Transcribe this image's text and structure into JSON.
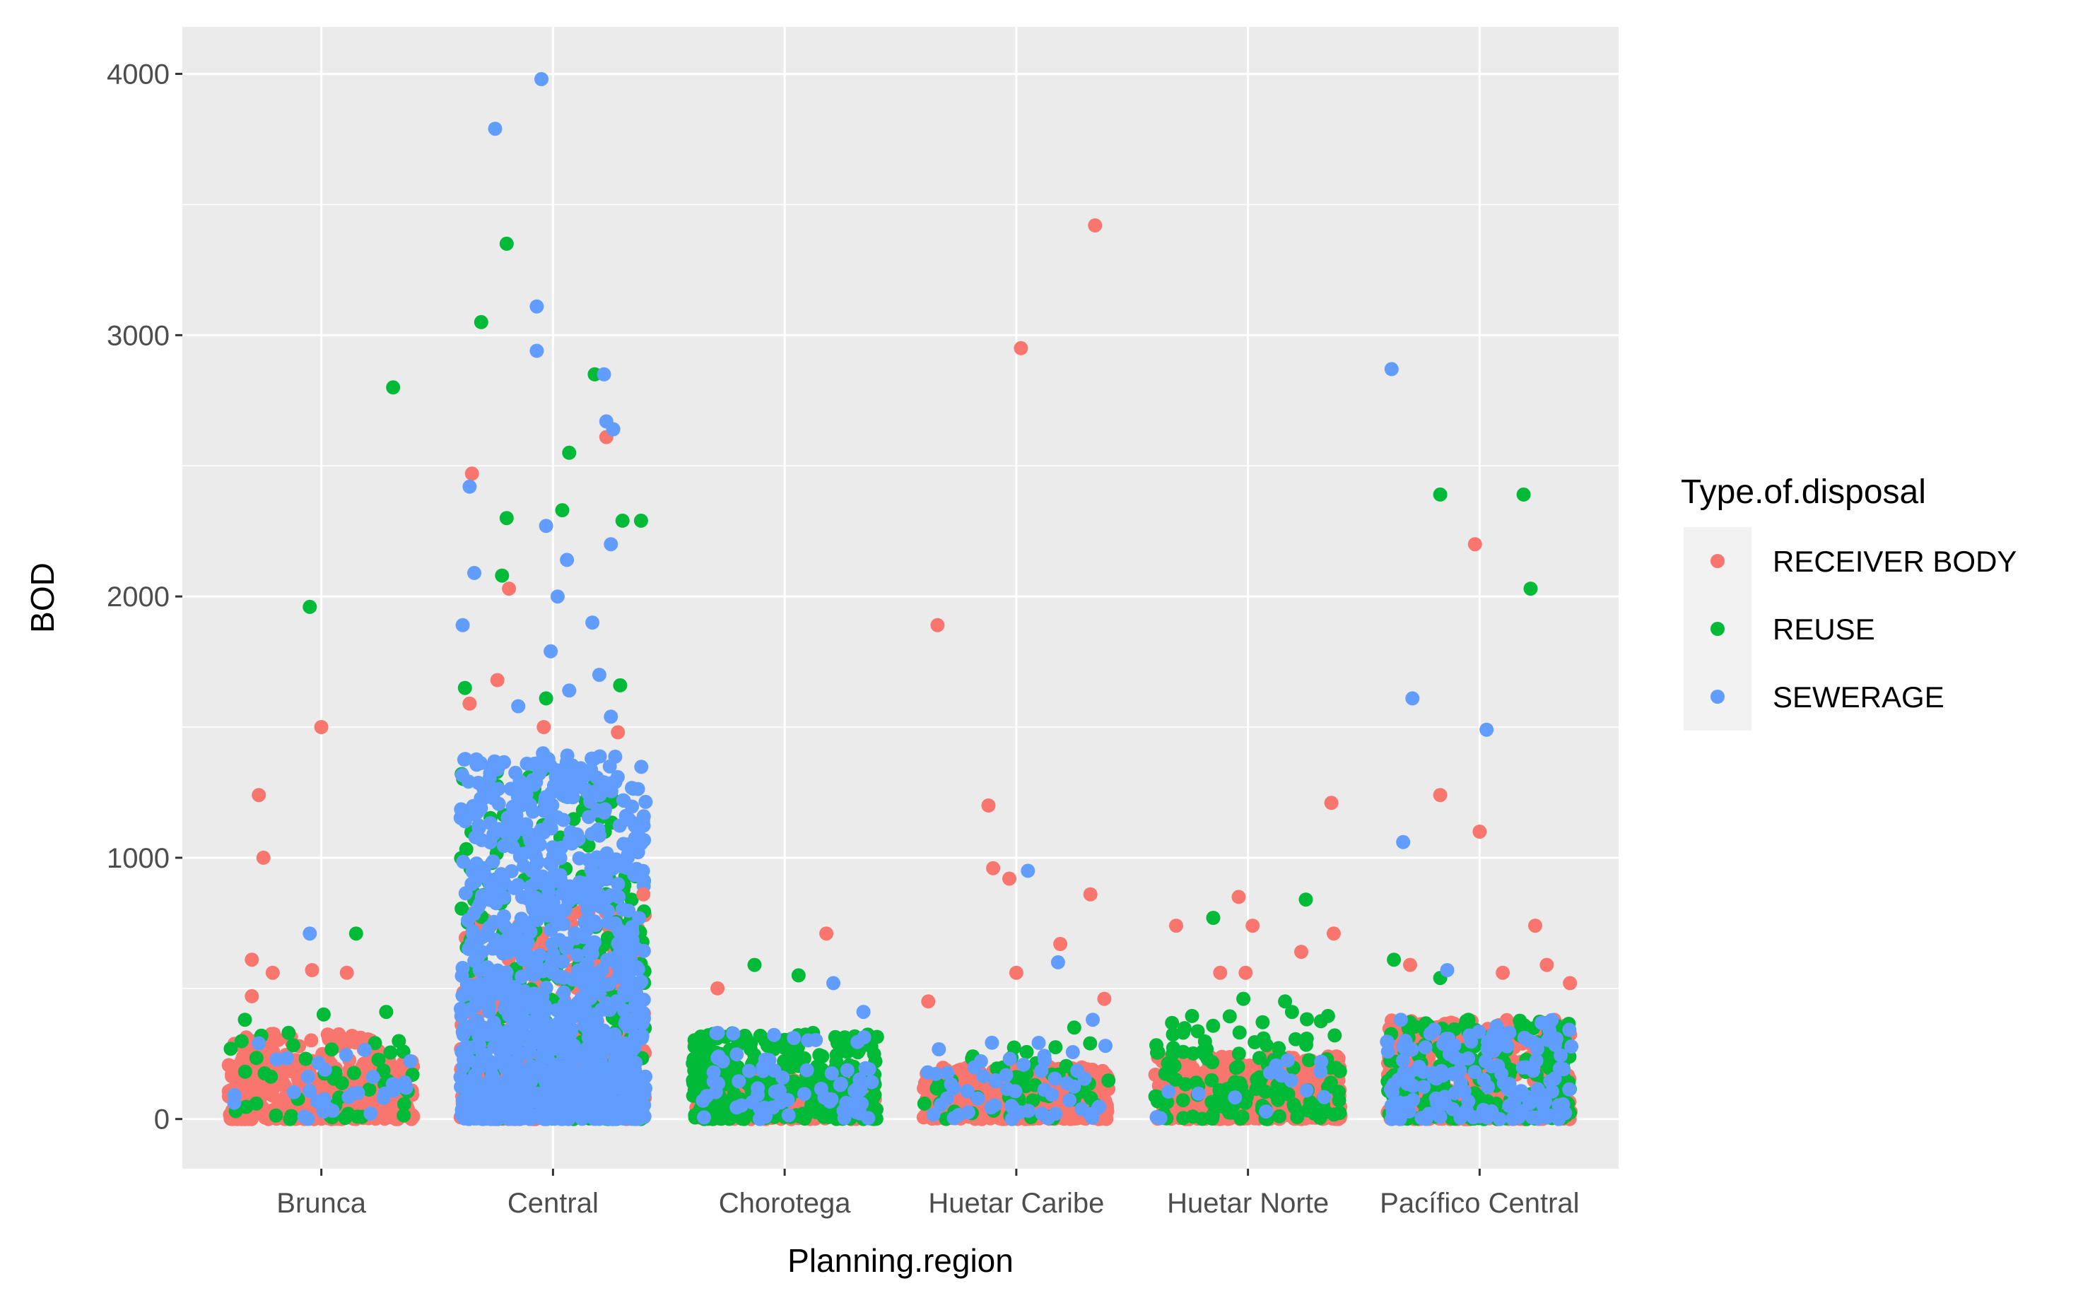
{
  "chart_data": {
    "type": "scatter",
    "subtype": "jitter",
    "xlabel": "Planning.region",
    "ylabel": "BOD",
    "categories": [
      "Brunca",
      "Central",
      "Chorotega",
      "Huetar Caribe",
      "Huetar Norte",
      "Pacífico Central"
    ],
    "ylim": [
      -190,
      4180
    ],
    "yticks": [
      0,
      1000,
      2000,
      3000,
      4000
    ],
    "grid": true,
    "legend": {
      "title": "Type.of.disposal",
      "position": "right",
      "entries": [
        "RECEIVER BODY",
        "REUSE",
        "SEWERAGE"
      ]
    },
    "series": [
      {
        "name": "RECEIVER BODY",
        "color": "#F8766D",
        "points": [
          {
            "cat": "Brunca",
            "offset": -0.27,
            "y": 1240
          },
          {
            "cat": "Brunca",
            "offset": -0.25,
            "y": 1000
          },
          {
            "cat": "Brunca",
            "offset": 0.0,
            "y": 1500
          },
          {
            "cat": "Brunca",
            "offset": -0.3,
            "y": 610
          },
          {
            "cat": "Brunca",
            "offset": -0.21,
            "y": 560
          },
          {
            "cat": "Brunca",
            "offset": -0.04,
            "y": 570
          },
          {
            "cat": "Brunca",
            "offset": 0.11,
            "y": 560
          },
          {
            "cat": "Brunca",
            "offset": -0.3,
            "y": 470
          },
          {
            "cat": "Central",
            "offset": -0.36,
            "y": 1590
          },
          {
            "cat": "Central",
            "offset": -0.35,
            "y": 2470
          },
          {
            "cat": "Central",
            "offset": -0.19,
            "y": 2030
          },
          {
            "cat": "Central",
            "offset": 0.23,
            "y": 2610
          },
          {
            "cat": "Central",
            "offset": 0.28,
            "y": 1480
          },
          {
            "cat": "Central",
            "offset": -0.24,
            "y": 1680
          },
          {
            "cat": "Central",
            "offset": -0.04,
            "y": 1500
          },
          {
            "cat": "Central",
            "offset": 0.39,
            "y": 860
          },
          {
            "cat": "Chorotega",
            "offset": 0.18,
            "y": 710
          },
          {
            "cat": "Chorotega",
            "offset": -0.29,
            "y": 500
          },
          {
            "cat": "Huetar Caribe",
            "offset": -0.34,
            "y": 1890
          },
          {
            "cat": "Huetar Caribe",
            "offset": 0.02,
            "y": 2950
          },
          {
            "cat": "Huetar Caribe",
            "offset": 0.34,
            "y": 3420
          },
          {
            "cat": "Huetar Caribe",
            "offset": -0.12,
            "y": 1200
          },
          {
            "cat": "Huetar Caribe",
            "offset": -0.1,
            "y": 960
          },
          {
            "cat": "Huetar Caribe",
            "offset": -0.03,
            "y": 920
          },
          {
            "cat": "Huetar Caribe",
            "offset": 0.32,
            "y": 860
          },
          {
            "cat": "Huetar Caribe",
            "offset": 0.19,
            "y": 670
          },
          {
            "cat": "Huetar Caribe",
            "offset": 0.38,
            "y": 460
          },
          {
            "cat": "Huetar Caribe",
            "offset": 0.0,
            "y": 560
          },
          {
            "cat": "Huetar Caribe",
            "offset": -0.38,
            "y": 450
          },
          {
            "cat": "Huetar Norte",
            "offset": 0.36,
            "y": 1210
          },
          {
            "cat": "Huetar Norte",
            "offset": -0.04,
            "y": 850
          },
          {
            "cat": "Huetar Norte",
            "offset": 0.02,
            "y": 740
          },
          {
            "cat": "Huetar Norte",
            "offset": -0.31,
            "y": 740
          },
          {
            "cat": "Huetar Norte",
            "offset": 0.37,
            "y": 710
          },
          {
            "cat": "Huetar Norte",
            "offset": 0.23,
            "y": 640
          },
          {
            "cat": "Huetar Norte",
            "offset": -0.12,
            "y": 560
          },
          {
            "cat": "Huetar Norte",
            "offset": -0.01,
            "y": 560
          },
          {
            "cat": "Pacífico Central",
            "offset": -0.17,
            "y": 1240
          },
          {
            "cat": "Pacífico Central",
            "offset": -0.02,
            "y": 2200
          },
          {
            "cat": "Pacífico Central",
            "offset": 0.0,
            "y": 1100
          },
          {
            "cat": "Pacífico Central",
            "offset": 0.24,
            "y": 740
          },
          {
            "cat": "Pacífico Central",
            "offset": -0.3,
            "y": 590
          },
          {
            "cat": "Pacífico Central",
            "offset": 0.29,
            "y": 590
          },
          {
            "cat": "Pacífico Central",
            "offset": 0.39,
            "y": 520
          },
          {
            "cat": "Pacífico Central",
            "offset": 0.1,
            "y": 560
          }
        ]
      },
      {
        "name": "REUSE",
        "color": "#00BA38",
        "points": [
          {
            "cat": "Brunca",
            "offset": -0.05,
            "y": 1960
          },
          {
            "cat": "Brunca",
            "offset": 0.31,
            "y": 2800
          },
          {
            "cat": "Brunca",
            "offset": 0.15,
            "y": 710
          },
          {
            "cat": "Brunca",
            "offset": 0.01,
            "y": 400
          },
          {
            "cat": "Brunca",
            "offset": 0.28,
            "y": 410
          },
          {
            "cat": "Brunca",
            "offset": -0.33,
            "y": 380
          },
          {
            "cat": "Central",
            "offset": -0.2,
            "y": 3350
          },
          {
            "cat": "Central",
            "offset": -0.31,
            "y": 3050
          },
          {
            "cat": "Central",
            "offset": 0.18,
            "y": 2850
          },
          {
            "cat": "Central",
            "offset": 0.07,
            "y": 2550
          },
          {
            "cat": "Central",
            "offset": 0.04,
            "y": 2330
          },
          {
            "cat": "Central",
            "offset": -0.2,
            "y": 2300
          },
          {
            "cat": "Central",
            "offset": -0.22,
            "y": 2080
          },
          {
            "cat": "Central",
            "offset": 0.3,
            "y": 2290
          },
          {
            "cat": "Central",
            "offset": 0.38,
            "y": 2290
          },
          {
            "cat": "Central",
            "offset": -0.38,
            "y": 1650
          },
          {
            "cat": "Central",
            "offset": -0.03,
            "y": 1610
          },
          {
            "cat": "Central",
            "offset": 0.29,
            "y": 1660
          },
          {
            "cat": "Chorotega",
            "offset": -0.13,
            "y": 590
          },
          {
            "cat": "Chorotega",
            "offset": 0.06,
            "y": 550
          },
          {
            "cat": "Huetar Caribe",
            "offset": 0.25,
            "y": 350
          },
          {
            "cat": "Huetar Norte",
            "offset": 0.25,
            "y": 840
          },
          {
            "cat": "Huetar Norte",
            "offset": -0.15,
            "y": 770
          },
          {
            "cat": "Huetar Norte",
            "offset": -0.02,
            "y": 460
          },
          {
            "cat": "Huetar Norte",
            "offset": 0.16,
            "y": 450
          },
          {
            "cat": "Pacífico Central",
            "offset": -0.37,
            "y": 610
          },
          {
            "cat": "Pacífico Central",
            "offset": -0.17,
            "y": 2390
          },
          {
            "cat": "Pacífico Central",
            "offset": 0.19,
            "y": 2390
          },
          {
            "cat": "Pacífico Central",
            "offset": 0.22,
            "y": 2030
          },
          {
            "cat": "Pacífico Central",
            "offset": -0.17,
            "y": 540
          }
        ]
      },
      {
        "name": "SEWERAGE",
        "color": "#619CFF",
        "points": [
          {
            "cat": "Central",
            "offset": -0.05,
            "y": 3980
          },
          {
            "cat": "Central",
            "offset": -0.25,
            "y": 3790
          },
          {
            "cat": "Central",
            "offset": -0.07,
            "y": 3110
          },
          {
            "cat": "Central",
            "offset": -0.07,
            "y": 2940
          },
          {
            "cat": "Central",
            "offset": 0.22,
            "y": 2850
          },
          {
            "cat": "Central",
            "offset": 0.23,
            "y": 2670
          },
          {
            "cat": "Central",
            "offset": 0.26,
            "y": 2640
          },
          {
            "cat": "Central",
            "offset": -0.36,
            "y": 2420
          },
          {
            "cat": "Central",
            "offset": -0.03,
            "y": 2270
          },
          {
            "cat": "Central",
            "offset": 0.06,
            "y": 2140
          },
          {
            "cat": "Central",
            "offset": 0.25,
            "y": 2200
          },
          {
            "cat": "Central",
            "offset": -0.34,
            "y": 2090
          },
          {
            "cat": "Central",
            "offset": 0.02,
            "y": 2000
          },
          {
            "cat": "Central",
            "offset": -0.39,
            "y": 1890
          },
          {
            "cat": "Central",
            "offset": 0.17,
            "y": 1900
          },
          {
            "cat": "Central",
            "offset": -0.01,
            "y": 1790
          },
          {
            "cat": "Central",
            "offset": 0.2,
            "y": 1700
          },
          {
            "cat": "Central",
            "offset": 0.07,
            "y": 1640
          },
          {
            "cat": "Central",
            "offset": -0.15,
            "y": 1580
          },
          {
            "cat": "Central",
            "offset": 0.25,
            "y": 1540
          },
          {
            "cat": "Brunca",
            "offset": -0.27,
            "y": 290
          },
          {
            "cat": "Brunca",
            "offset": -0.05,
            "y": 710
          },
          {
            "cat": "Chorotega",
            "offset": 0.21,
            "y": 520
          },
          {
            "cat": "Chorotega",
            "offset": 0.34,
            "y": 410
          },
          {
            "cat": "Huetar Caribe",
            "offset": 0.05,
            "y": 950
          },
          {
            "cat": "Huetar Caribe",
            "offset": 0.18,
            "y": 600
          },
          {
            "cat": "Huetar Caribe",
            "offset": 0.33,
            "y": 380
          },
          {
            "cat": "Pacífico Central",
            "offset": -0.38,
            "y": 2870
          },
          {
            "cat": "Pacífico Central",
            "offset": -0.29,
            "y": 1610
          },
          {
            "cat": "Pacífico Central",
            "offset": 0.03,
            "y": 1490
          },
          {
            "cat": "Pacífico Central",
            "offset": -0.33,
            "y": 1060
          },
          {
            "cat": "Pacífico Central",
            "offset": -0.34,
            "y": 380
          },
          {
            "cat": "Pacífico Central",
            "offset": -0.14,
            "y": 570
          }
        ]
      }
    ],
    "dense_clusters": [
      {
        "cat": "Brunca",
        "series": "RECEIVER BODY",
        "count": 420,
        "ymax": 330,
        "skew": 2.0,
        "spread": 0.4
      },
      {
        "cat": "Brunca",
        "series": "REUSE",
        "count": 45,
        "ymax": 330,
        "skew": 1.6,
        "spread": 0.4
      },
      {
        "cat": "Brunca",
        "series": "SEWERAGE",
        "count": 30,
        "ymax": 330,
        "skew": 1.6,
        "spread": 0.4
      },
      {
        "cat": "Central",
        "series": "RECEIVER BODY",
        "count": 420,
        "ymax": 800,
        "skew": 1.6,
        "spread": 0.4
      },
      {
        "cat": "Central",
        "series": "REUSE",
        "count": 360,
        "ymax": 1350,
        "skew": 1.8,
        "spread": 0.4
      },
      {
        "cat": "Central",
        "series": "SEWERAGE",
        "count": 1100,
        "ymax": 1400,
        "skew": 1.9,
        "spread": 0.4
      },
      {
        "cat": "Chorotega",
        "series": "RECEIVER BODY",
        "count": 240,
        "ymax": 170,
        "skew": 1.5,
        "spread": 0.4
      },
      {
        "cat": "Chorotega",
        "series": "REUSE",
        "count": 360,
        "ymax": 330,
        "skew": 1.4,
        "spread": 0.4
      },
      {
        "cat": "Chorotega",
        "series": "SEWERAGE",
        "count": 70,
        "ymax": 330,
        "skew": 1.4,
        "spread": 0.4
      },
      {
        "cat": "Huetar Caribe",
        "series": "RECEIVER BODY",
        "count": 620,
        "ymax": 200,
        "skew": 1.5,
        "spread": 0.4
      },
      {
        "cat": "Huetar Caribe",
        "series": "REUSE",
        "count": 50,
        "ymax": 300,
        "skew": 1.5,
        "spread": 0.4
      },
      {
        "cat": "Huetar Caribe",
        "series": "SEWERAGE",
        "count": 55,
        "ymax": 300,
        "skew": 1.3,
        "spread": 0.4
      },
      {
        "cat": "Huetar Norte",
        "series": "RECEIVER BODY",
        "count": 560,
        "ymax": 240,
        "skew": 1.5,
        "spread": 0.4
      },
      {
        "cat": "Huetar Norte",
        "series": "REUSE",
        "count": 130,
        "ymax": 420,
        "skew": 1.5,
        "spread": 0.4
      },
      {
        "cat": "Huetar Norte",
        "series": "SEWERAGE",
        "count": 15,
        "ymax": 240,
        "skew": 1.5,
        "spread": 0.4
      },
      {
        "cat": "Pacífico Central",
        "series": "RECEIVER BODY",
        "count": 330,
        "ymax": 380,
        "skew": 1.8,
        "spread": 0.4
      },
      {
        "cat": "Pacífico Central",
        "series": "REUSE",
        "count": 230,
        "ymax": 380,
        "skew": 1.7,
        "spread": 0.4
      },
      {
        "cat": "Pacífico Central",
        "series": "SEWERAGE",
        "count": 160,
        "ymax": 380,
        "skew": 1.7,
        "spread": 0.4
      }
    ]
  }
}
